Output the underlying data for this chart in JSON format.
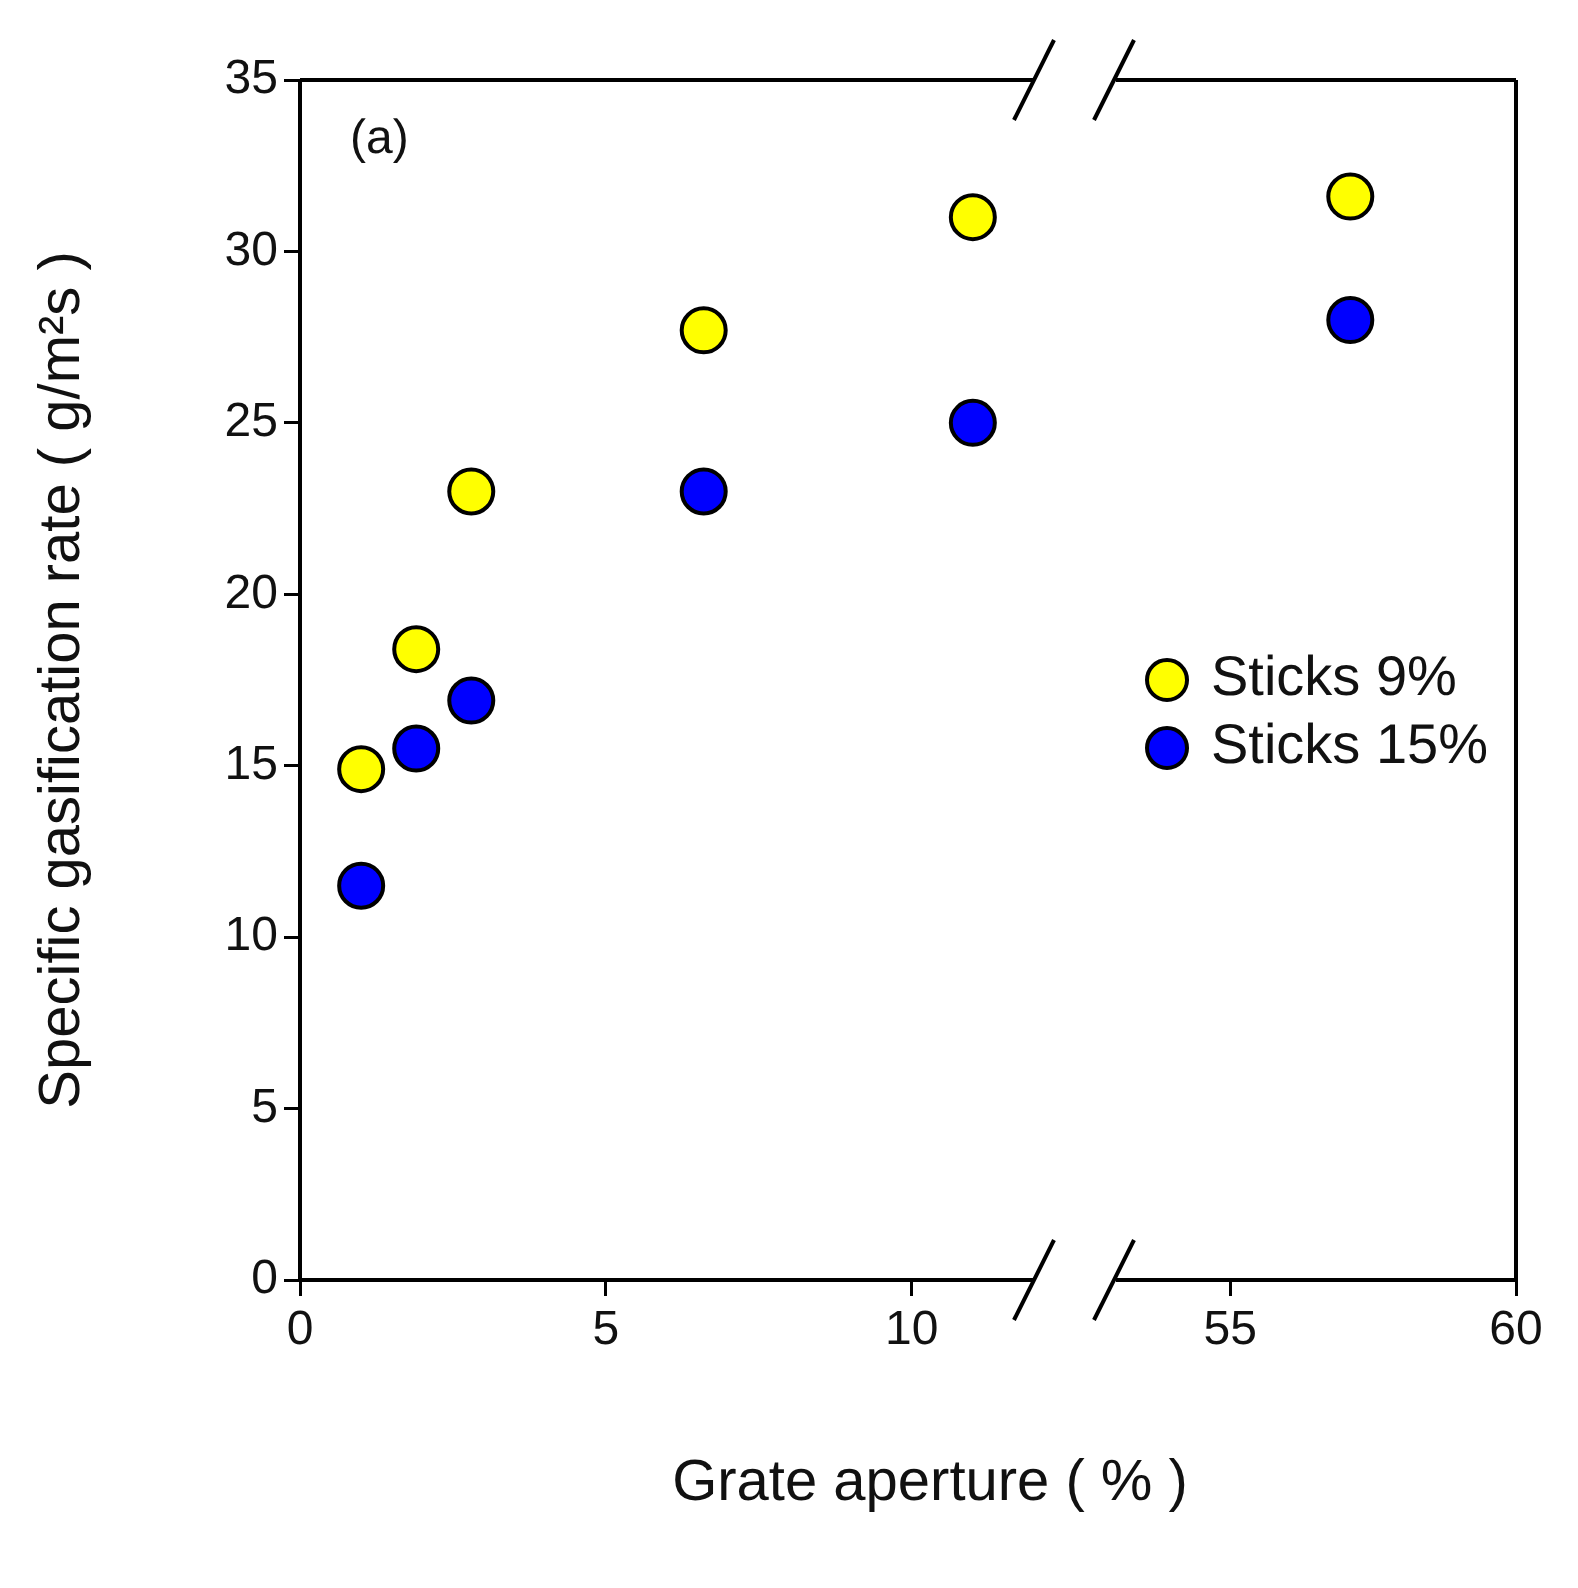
{
  "chart_data": [
    {
      "type": "scatter",
      "ylabel": "Specific gasification rate ( g/m²s )",
      "xlabel": "Grate aperture ( % )",
      "annotations": [
        "(a)"
      ],
      "xlim": [
        0,
        12
      ],
      "xticks": [
        0,
        5,
        10
      ],
      "ylim": [
        0,
        35
      ],
      "yticks": [
        0,
        5,
        10,
        15,
        20,
        25,
        30,
        35
      ],
      "marker": "circle",
      "legend": false,
      "series": [
        {
          "color": "#ffff00",
          "x": [
            1.0,
            1.9,
            2.8,
            6.6,
            11.0
          ],
          "values": [
            14.9,
            18.4,
            23.0,
            27.7,
            31.0
          ]
        },
        {
          "color": "#0000ff",
          "x": [
            1.0,
            1.9,
            2.8,
            6.6,
            11.0
          ],
          "values": [
            11.5,
            15.5,
            16.9,
            23.0,
            25.0
          ]
        }
      ]
    },
    {
      "type": "scatter",
      "xlim": [
        53,
        60
      ],
      "xticks": [
        55,
        60
      ],
      "ylim": [
        0,
        35
      ],
      "tick_labels": "x",
      "marker": "circle",
      "legend": "right",
      "series": [
        {
          "name": "Sticks 9%",
          "color": "#ffff00",
          "x": [
            57.1
          ],
          "values": [
            31.6
          ]
        },
        {
          "name": "Sticks 15%",
          "color": "#0000ff",
          "x": [
            57.1
          ],
          "values": [
            28.0
          ]
        }
      ]
    }
  ]
}
